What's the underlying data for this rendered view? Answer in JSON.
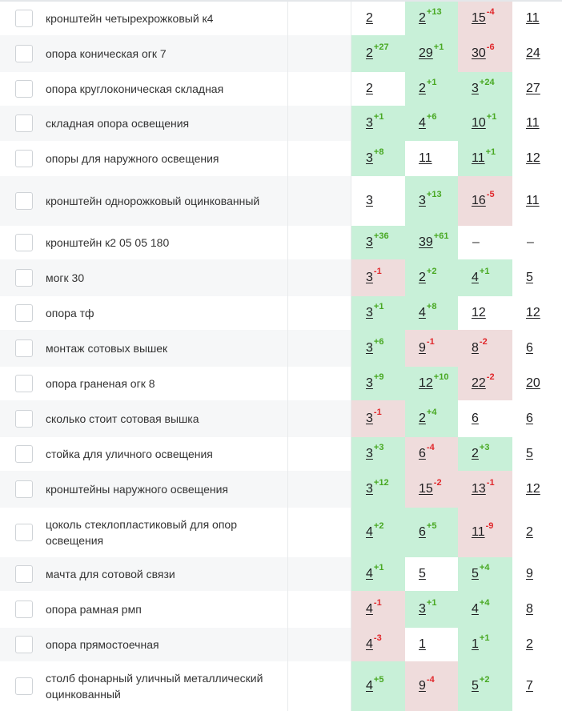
{
  "colors": {
    "improved": "#c8f0d8",
    "declined": "#efdcdc",
    "delta_up": "#48a822",
    "delta_down": "#e0272b"
  },
  "rows": [
    {
      "keyword": "кронштейн четырехрожковый к4",
      "cells": [
        {
          "pos": "2",
          "delta": "",
          "trend": "none"
        },
        {
          "pos": "2",
          "delta": "+13",
          "trend": "up"
        },
        {
          "pos": "15",
          "delta": "-4",
          "trend": "down"
        },
        {
          "pos": "11",
          "delta": "",
          "trend": "none"
        }
      ]
    },
    {
      "keyword": "опора коническая огк 7",
      "cells": [
        {
          "pos": "2",
          "delta": "+27",
          "trend": "up"
        },
        {
          "pos": "29",
          "delta": "+1",
          "trend": "up"
        },
        {
          "pos": "30",
          "delta": "-6",
          "trend": "down"
        },
        {
          "pos": "24",
          "delta": "",
          "trend": "none"
        }
      ]
    },
    {
      "keyword": "опора круглоконическая складная",
      "cells": [
        {
          "pos": "2",
          "delta": "",
          "trend": "none"
        },
        {
          "pos": "2",
          "delta": "+1",
          "trend": "up"
        },
        {
          "pos": "3",
          "delta": "+24",
          "trend": "up"
        },
        {
          "pos": "27",
          "delta": "",
          "trend": "none"
        }
      ]
    },
    {
      "keyword": "складная опора освещения",
      "cells": [
        {
          "pos": "3",
          "delta": "+1",
          "trend": "up"
        },
        {
          "pos": "4",
          "delta": "+6",
          "trend": "up"
        },
        {
          "pos": "10",
          "delta": "+1",
          "trend": "up"
        },
        {
          "pos": "11",
          "delta": "",
          "trend": "none"
        }
      ]
    },
    {
      "keyword": "опоры для наружного освещения",
      "cells": [
        {
          "pos": "3",
          "delta": "+8",
          "trend": "up"
        },
        {
          "pos": "11",
          "delta": "",
          "trend": "same"
        },
        {
          "pos": "11",
          "delta": "+1",
          "trend": "up"
        },
        {
          "pos": "12",
          "delta": "",
          "trend": "none"
        }
      ]
    },
    {
      "keyword": "кронштейн однорожковый оцинкованный",
      "cells": [
        {
          "pos": "3",
          "delta": "",
          "trend": "none"
        },
        {
          "pos": "3",
          "delta": "+13",
          "trend": "up"
        },
        {
          "pos": "16",
          "delta": "-5",
          "trend": "down"
        },
        {
          "pos": "11",
          "delta": "",
          "trend": "none"
        }
      ]
    },
    {
      "keyword": "кронштейн к2 05 05 180",
      "cells": [
        {
          "pos": "3",
          "delta": "+36",
          "trend": "up"
        },
        {
          "pos": "39",
          "delta": "+61",
          "trend": "up"
        },
        {
          "pos": "–",
          "delta": "",
          "trend": "none"
        },
        {
          "pos": "–",
          "delta": "",
          "trend": "none"
        }
      ]
    },
    {
      "keyword": "могк 30",
      "cells": [
        {
          "pos": "3",
          "delta": "-1",
          "trend": "down"
        },
        {
          "pos": "2",
          "delta": "+2",
          "trend": "up"
        },
        {
          "pos": "4",
          "delta": "+1",
          "trend": "up"
        },
        {
          "pos": "5",
          "delta": "",
          "trend": "none"
        }
      ]
    },
    {
      "keyword": "опора тф",
      "cells": [
        {
          "pos": "3",
          "delta": "+1",
          "trend": "up"
        },
        {
          "pos": "4",
          "delta": "+8",
          "trend": "up"
        },
        {
          "pos": "12",
          "delta": "",
          "trend": "same"
        },
        {
          "pos": "12",
          "delta": "",
          "trend": "none"
        }
      ]
    },
    {
      "keyword": "монтаж сотовых вышек",
      "cells": [
        {
          "pos": "3",
          "delta": "+6",
          "trend": "up"
        },
        {
          "pos": "9",
          "delta": "-1",
          "trend": "down"
        },
        {
          "pos": "8",
          "delta": "-2",
          "trend": "down"
        },
        {
          "pos": "6",
          "delta": "",
          "trend": "none"
        }
      ]
    },
    {
      "keyword": "опора граненая огк 8",
      "cells": [
        {
          "pos": "3",
          "delta": "+9",
          "trend": "up"
        },
        {
          "pos": "12",
          "delta": "+10",
          "trend": "up"
        },
        {
          "pos": "22",
          "delta": "-2",
          "trend": "down"
        },
        {
          "pos": "20",
          "delta": "",
          "trend": "none"
        }
      ]
    },
    {
      "keyword": "сколько стоит сотовая вышка",
      "cells": [
        {
          "pos": "3",
          "delta": "-1",
          "trend": "down"
        },
        {
          "pos": "2",
          "delta": "+4",
          "trend": "up"
        },
        {
          "pos": "6",
          "delta": "",
          "trend": "same"
        },
        {
          "pos": "6",
          "delta": "",
          "trend": "none"
        }
      ]
    },
    {
      "keyword": "стойка для уличного освещения",
      "cells": [
        {
          "pos": "3",
          "delta": "+3",
          "trend": "up"
        },
        {
          "pos": "6",
          "delta": "-4",
          "trend": "down"
        },
        {
          "pos": "2",
          "delta": "+3",
          "trend": "up"
        },
        {
          "pos": "5",
          "delta": "",
          "trend": "none"
        }
      ]
    },
    {
      "keyword": "кронштейны наружного освещения",
      "cells": [
        {
          "pos": "3",
          "delta": "+12",
          "trend": "up"
        },
        {
          "pos": "15",
          "delta": "-2",
          "trend": "down"
        },
        {
          "pos": "13",
          "delta": "-1",
          "trend": "down"
        },
        {
          "pos": "12",
          "delta": "",
          "trend": "none"
        }
      ]
    },
    {
      "keyword": "цоколь стеклопластиковый для опор освещения",
      "cells": [
        {
          "pos": "4",
          "delta": "+2",
          "trend": "up"
        },
        {
          "pos": "6",
          "delta": "+5",
          "trend": "up"
        },
        {
          "pos": "11",
          "delta": "-9",
          "trend": "down"
        },
        {
          "pos": "2",
          "delta": "",
          "trend": "none"
        }
      ]
    },
    {
      "keyword": "мачта для сотовой связи",
      "cells": [
        {
          "pos": "4",
          "delta": "+1",
          "trend": "up"
        },
        {
          "pos": "5",
          "delta": "",
          "trend": "same"
        },
        {
          "pos": "5",
          "delta": "+4",
          "trend": "up"
        },
        {
          "pos": "9",
          "delta": "",
          "trend": "none"
        }
      ]
    },
    {
      "keyword": "опора рамная рмп",
      "cells": [
        {
          "pos": "4",
          "delta": "-1",
          "trend": "down"
        },
        {
          "pos": "3",
          "delta": "+1",
          "trend": "up"
        },
        {
          "pos": "4",
          "delta": "+4",
          "trend": "up"
        },
        {
          "pos": "8",
          "delta": "",
          "trend": "none"
        }
      ]
    },
    {
      "keyword": "опора прямостоечная",
      "cells": [
        {
          "pos": "4",
          "delta": "-3",
          "trend": "down"
        },
        {
          "pos": "1",
          "delta": "",
          "trend": "same"
        },
        {
          "pos": "1",
          "delta": "+1",
          "trend": "up"
        },
        {
          "pos": "2",
          "delta": "",
          "trend": "none"
        }
      ]
    },
    {
      "keyword": "столб фонарный уличный металлический оцинкованный",
      "cells": [
        {
          "pos": "4",
          "delta": "+5",
          "trend": "up"
        },
        {
          "pos": "9",
          "delta": "-4",
          "trend": "down"
        },
        {
          "pos": "5",
          "delta": "+2",
          "trend": "up"
        },
        {
          "pos": "7",
          "delta": "",
          "trend": "none"
        }
      ]
    }
  ]
}
